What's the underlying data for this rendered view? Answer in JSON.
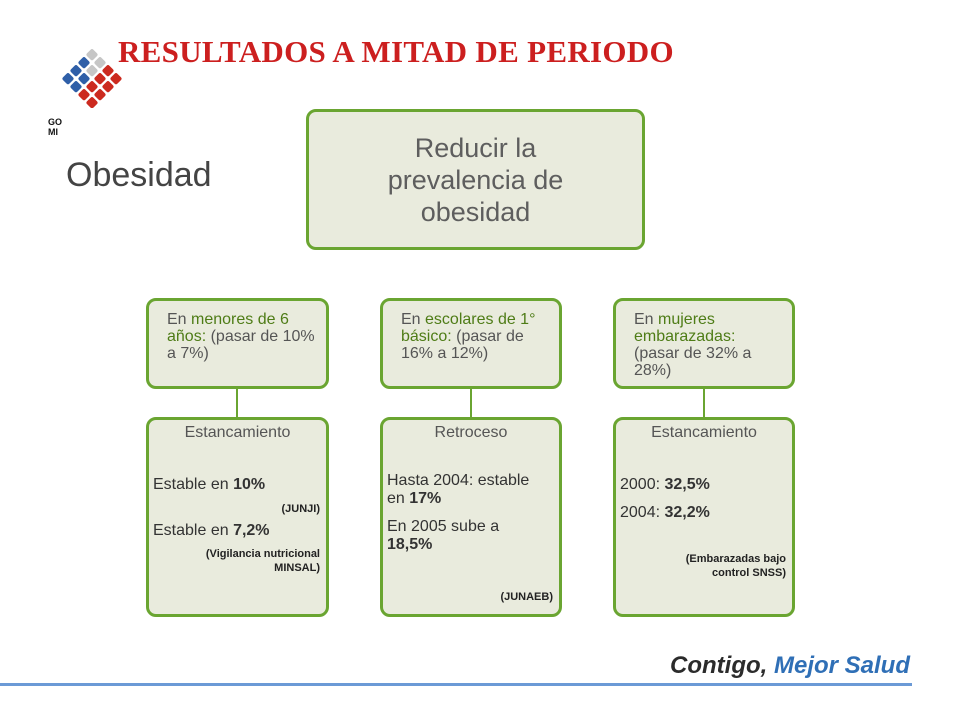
{
  "header": {
    "title": "RESULTADOS A MITAD DE PERIODO"
  },
  "logo": {
    "text_line1": "GO",
    "text_line2": "MI",
    "colors": [
      "#2f5fa8",
      "#c6c6c6",
      "#cc2a1f"
    ]
  },
  "section": {
    "label": "Obesidad"
  },
  "main_goal": {
    "line1": "Reducir la",
    "line2": "prevalencia de",
    "line3": "obesidad"
  },
  "goals": [
    {
      "prefix": "En ",
      "highlight": "menores de 6 años:",
      "rest": " (pasar de 10% a 7%)"
    },
    {
      "prefix": "En ",
      "highlight": "escolares de 1° básico:",
      "rest": " (pasar de 16% a 12%)"
    },
    {
      "prefix": "En ",
      "highlight": "mujeres embarazadas:",
      "rest": " (pasar de 32% a 28%)"
    }
  ],
  "results": [
    {
      "status": "Estancamiento",
      "l1_text": "Estable en ",
      "l1_val": "10%",
      "src1": "(JUNJI)",
      "l2_text": "Estable en ",
      "l2_val": "7,2%",
      "src2_line1": "(Vigilancia nutricional",
      "src2_line2": "MINSAL)"
    },
    {
      "status": "Retroceso",
      "l1_text_a": "Hasta 2004: estable",
      "l1_text_b": "en ",
      "l1_val": "17%",
      "l2_text": "En 2005 sube a",
      "l2_val": "18,5%",
      "src": "(JUNAEB)"
    },
    {
      "status": "Estancamiento",
      "l1_text": "2000: ",
      "l1_val": "32,5%",
      "l2_text": "2004: ",
      "l2_val": "32,2%",
      "src_line1": "(Embarazadas bajo",
      "src_line2": "control SNSS)"
    }
  ],
  "footer": {
    "brand_part1": "Contigo,",
    "brand_part2": " Mejor Salud"
  }
}
